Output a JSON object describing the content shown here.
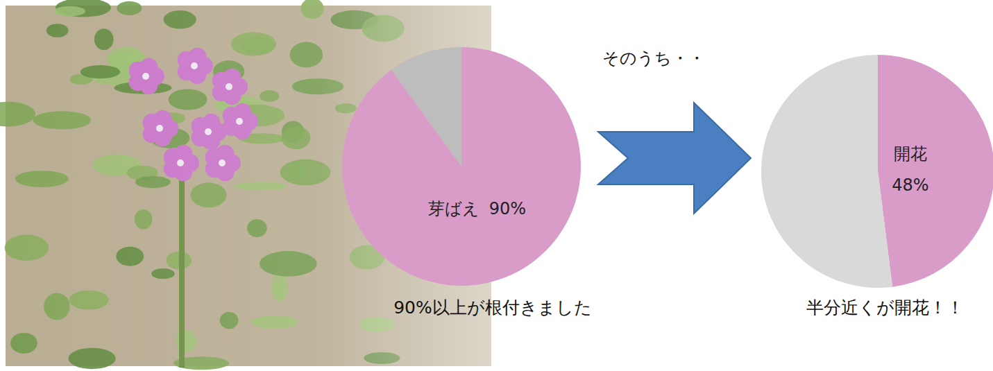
{
  "chart_data": [
    {
      "type": "pie",
      "categories": [
        "芽ばえ",
        null
      ],
      "values": [
        90,
        10
      ],
      "value_labels": [
        "90%",
        null
      ],
      "colors": [
        "#d99cc8",
        "#bdbdbd"
      ],
      "data_labels": true,
      "annotations": [
        "90%以上が根付きました"
      ]
    },
    {
      "type": "pie",
      "categories": [
        "開花",
        null
      ],
      "values": [
        48,
        52
      ],
      "value_labels": [
        "48%",
        null
      ],
      "colors": [
        "#d99cc8",
        "#d9d9d9"
      ],
      "data_labels": true,
      "annotations": [
        "半分近くが開花！！"
      ]
    }
  ],
  "arrow": {
    "label": "そのうち・・"
  }
}
